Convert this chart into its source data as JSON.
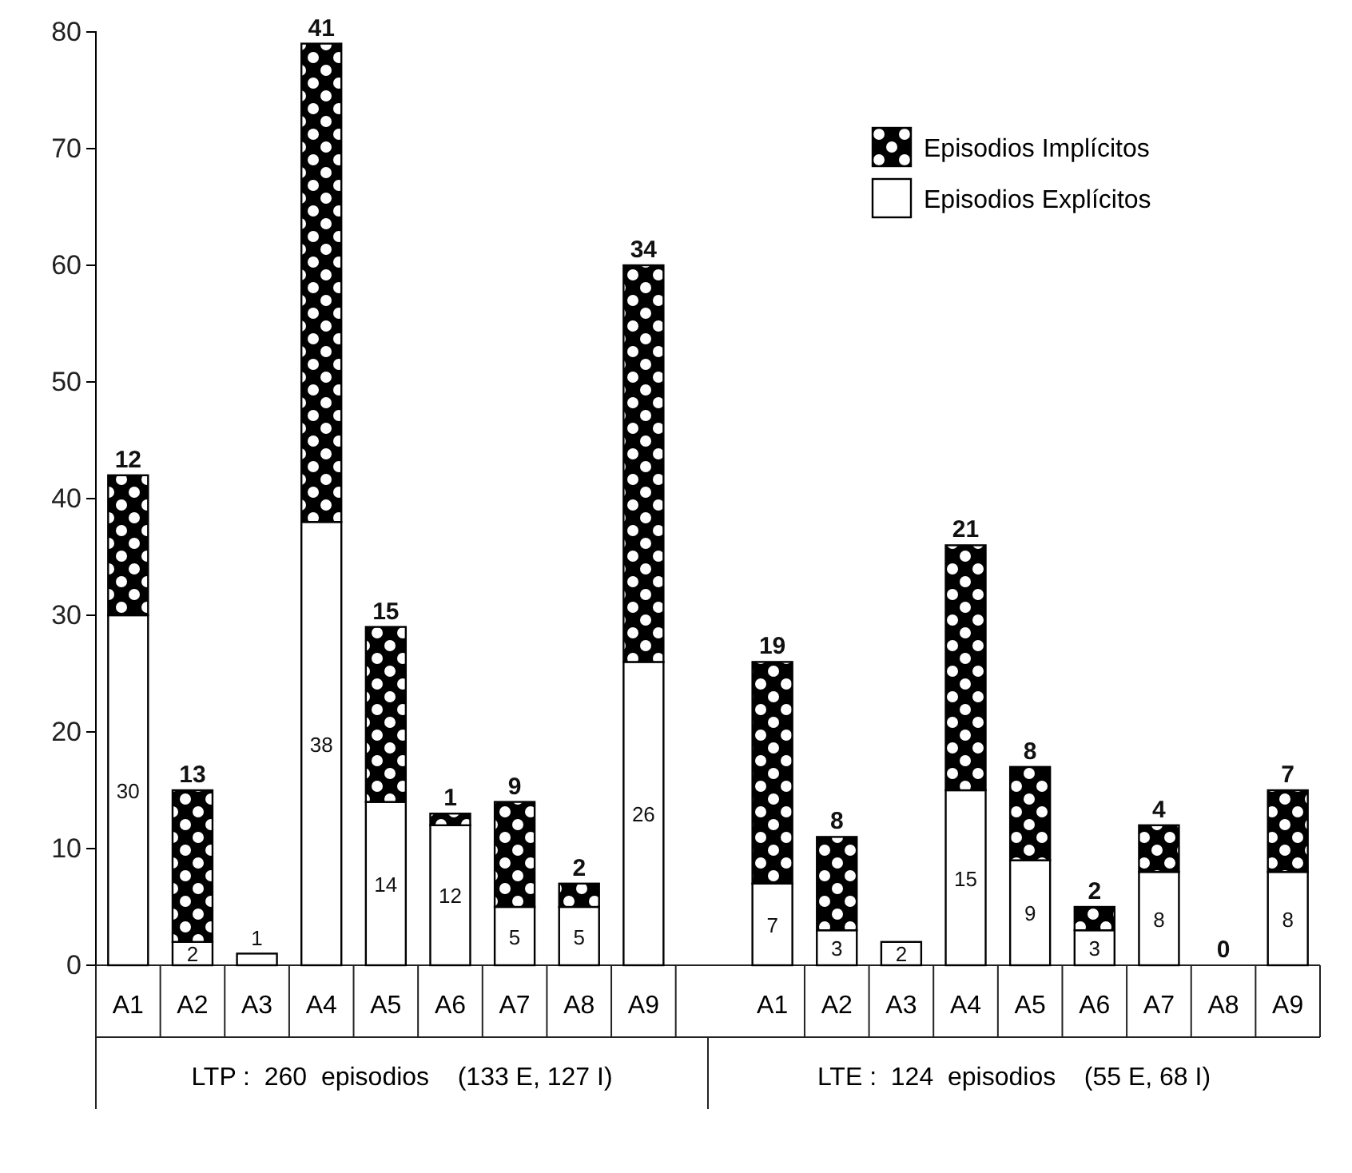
{
  "chart_data": {
    "type": "bar",
    "stacked": true,
    "categories": [
      "A1",
      "A2",
      "A3",
      "A4",
      "A5",
      "A6",
      "A7",
      "A8",
      "A9",
      "A1",
      "A2",
      "A3",
      "A4",
      "A5",
      "A6",
      "A7",
      "A8",
      "A9"
    ],
    "series": [
      {
        "name": "Episodios Explícitos",
        "color": "#ffffff",
        "values": [
          30,
          2,
          1,
          38,
          14,
          12,
          5,
          5,
          26,
          7,
          3,
          2,
          15,
          9,
          3,
          8,
          0,
          8
        ],
        "value_labels": [
          "30",
          "2",
          "1",
          "38",
          "14",
          "12",
          "5",
          "5",
          "26",
          "7",
          "3",
          "2",
          "15",
          "9",
          "3",
          "8",
          null,
          "8"
        ]
      },
      {
        "name": "Episodios Implícitos",
        "color": "#000000",
        "values": [
          12,
          13,
          0,
          41,
          15,
          1,
          9,
          2,
          34,
          19,
          8,
          0,
          21,
          8,
          2,
          4,
          0,
          7
        ],
        "value_labels": [
          "12",
          "13",
          null,
          "41",
          "15",
          "1",
          "9",
          "2",
          "34",
          "19",
          "8",
          null,
          "21",
          "8",
          "2",
          "4",
          "0",
          "7"
        ]
      }
    ],
    "ylim": [
      0,
      80
    ],
    "yticks": [
      0,
      10,
      20,
      30,
      40,
      50,
      60,
      70,
      80
    ],
    "legend": "top right",
    "annotations": [
      "LTP :  260  episodios    (133 E, 127 I)",
      "LTE :  124  episodios    (55 E, 68 I)"
    ]
  }
}
